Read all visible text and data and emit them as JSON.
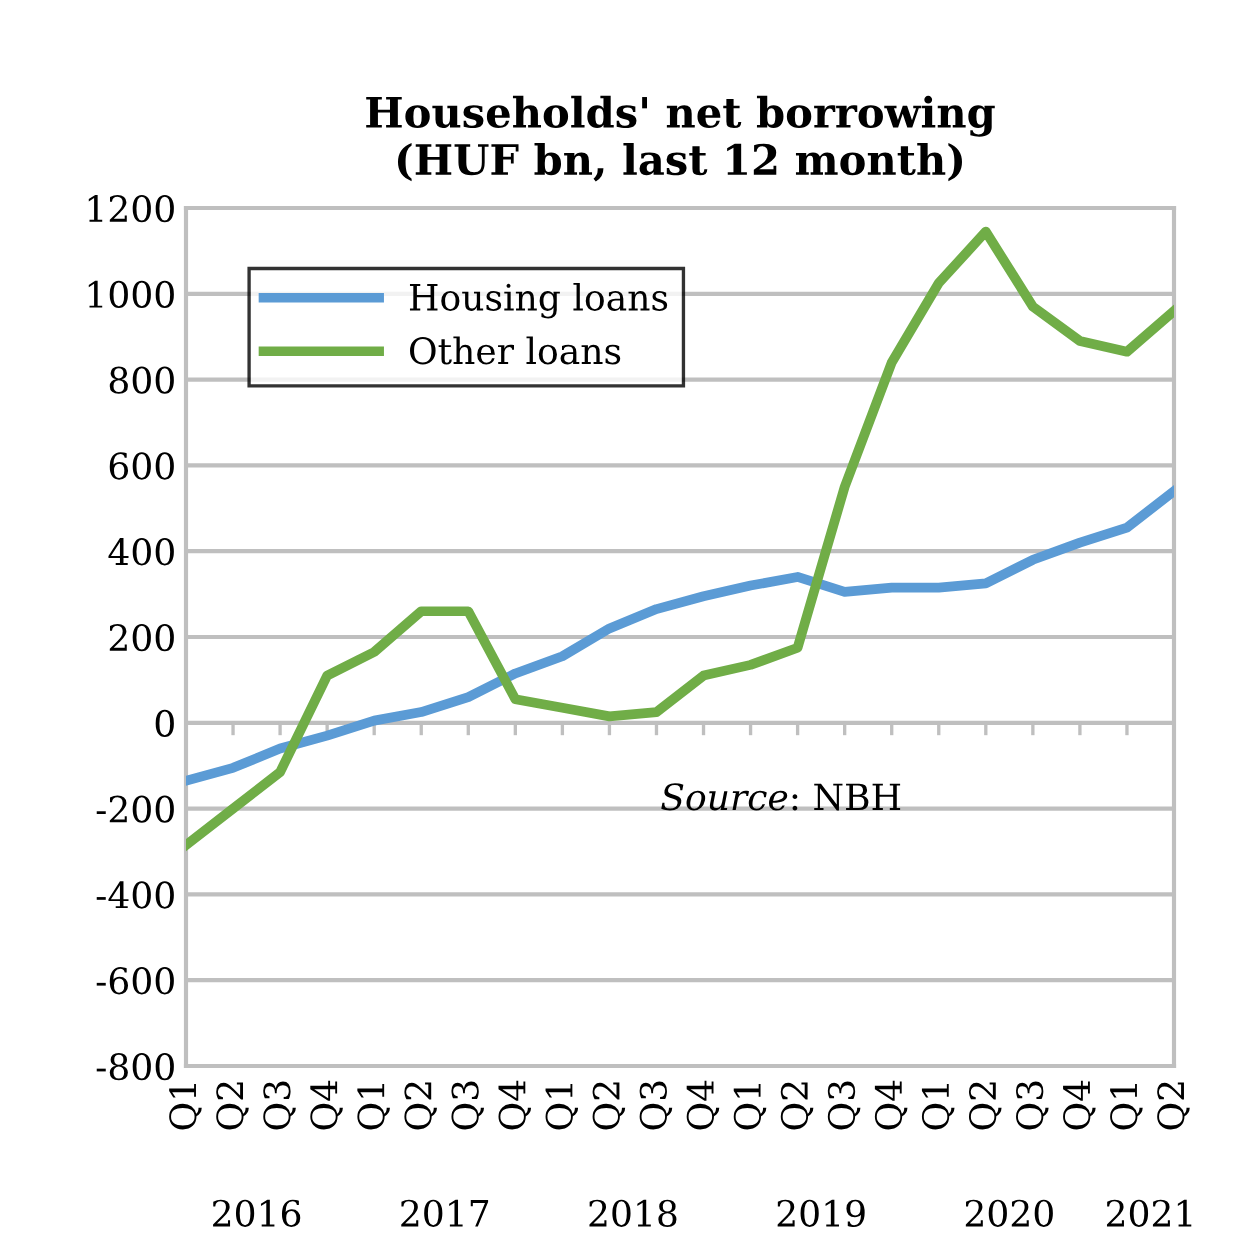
{
  "chart_data": {
    "type": "line",
    "title": "Households' net borrowing\n(HUF bn, last 12 month)",
    "categories": [
      "Q1",
      "Q2",
      "Q3",
      "Q4",
      "Q1",
      "Q2",
      "Q3",
      "Q4",
      "Q1",
      "Q2",
      "Q3",
      "Q4",
      "Q1",
      "Q2",
      "Q3",
      "Q4",
      "Q1",
      "Q2",
      "Q3",
      "Q4",
      "Q1",
      "Q2"
    ],
    "series": [
      {
        "name": "Housing loans",
        "color": "#5b9bd5",
        "values": [
          -135,
          -105,
          -60,
          -30,
          5,
          25,
          60,
          115,
          155,
          220,
          265,
          295,
          320,
          340,
          305,
          315,
          315,
          325,
          380,
          420,
          455,
          540
        ]
      },
      {
        "name": "Other loans",
        "color": "#70ad47",
        "values": [
          -285,
          -200,
          -115,
          110,
          165,
          260,
          260,
          55,
          35,
          15,
          25,
          110,
          135,
          175,
          550,
          840,
          1025,
          1145,
          970,
          890,
          865,
          960
        ]
      }
    ],
    "ylim": [
      -800,
      1200
    ],
    "yticks": [
      -800,
      -600,
      -400,
      -200,
      0,
      200,
      400,
      600,
      800,
      1000,
      1200
    ],
    "grid": "y",
    "legend": "top left",
    "marker": "none",
    "line_style": "solid",
    "annotations": [
      "2016",
      "2017",
      "2018",
      "2019",
      "2020",
      "2021",
      "Source: NBH"
    ]
  }
}
